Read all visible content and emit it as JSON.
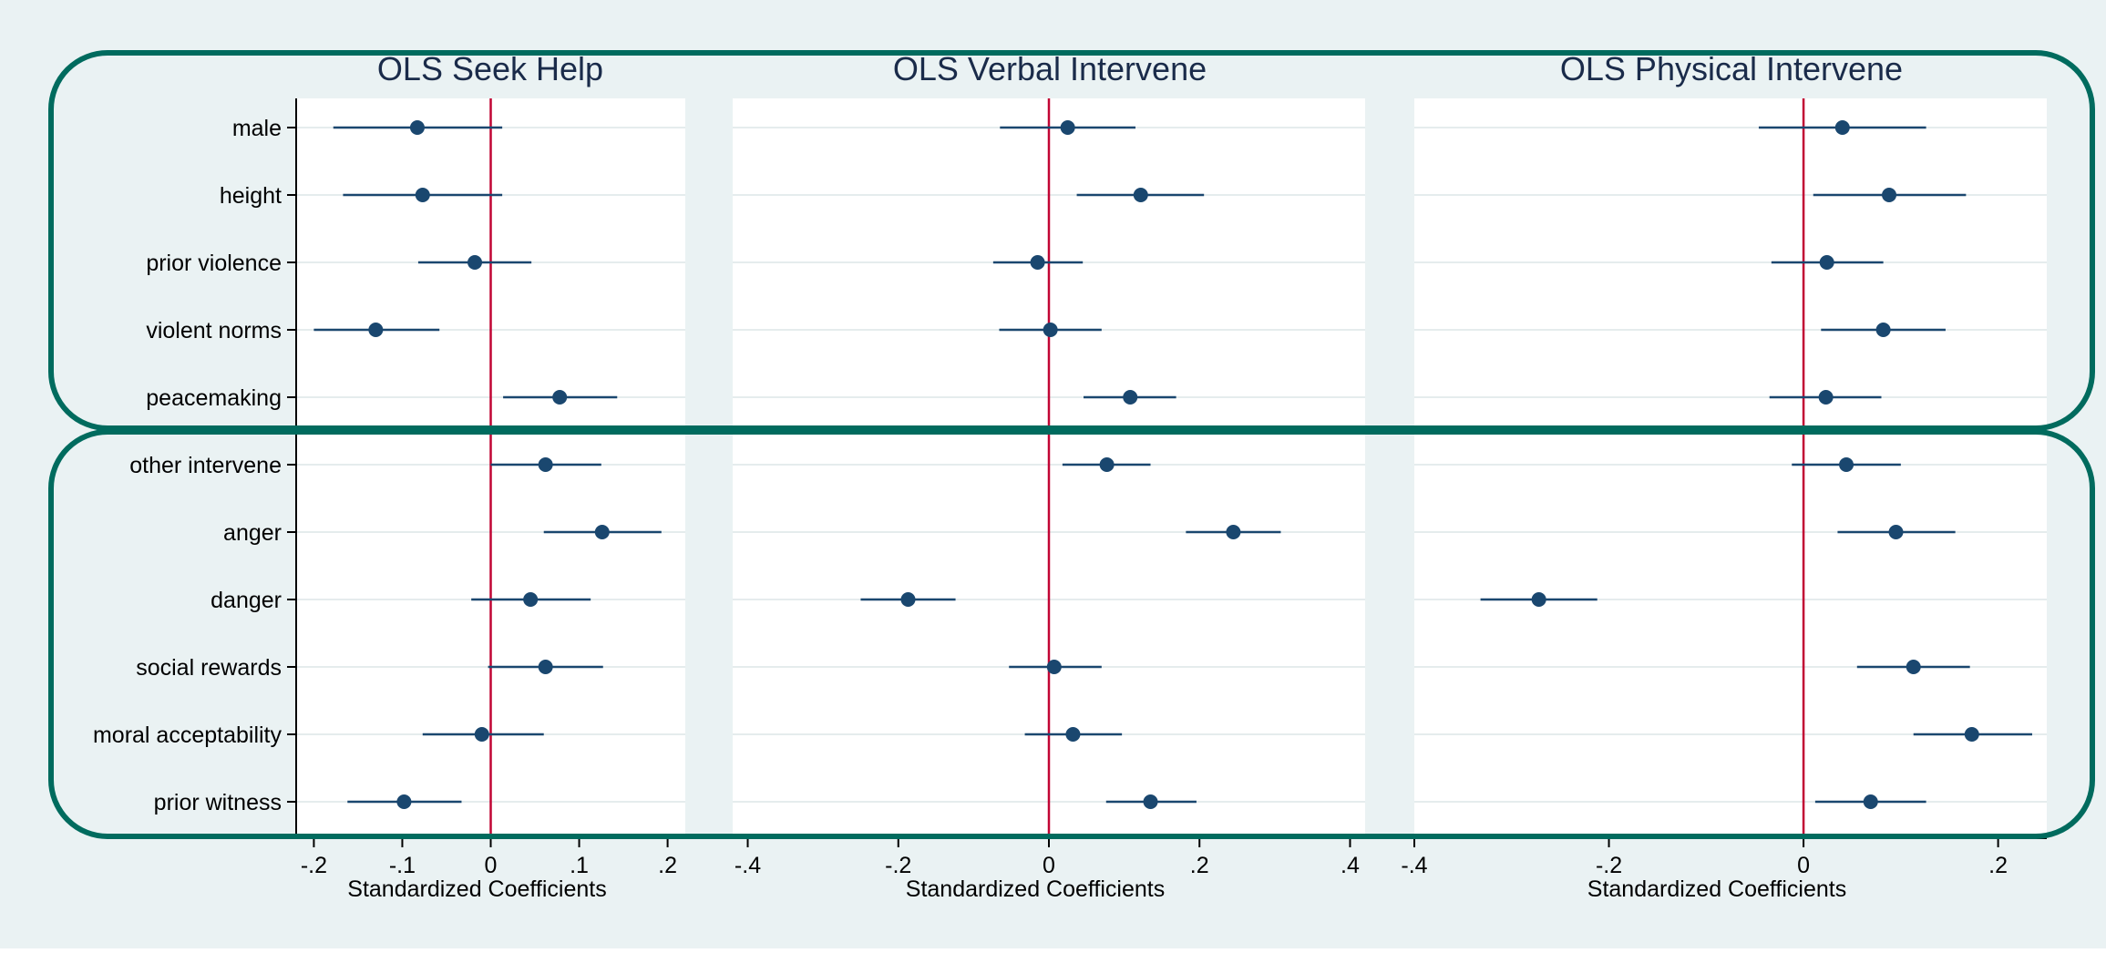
{
  "chart_data": [
    {
      "type": "scatter",
      "title": "OLS Seek Help",
      "xlabel": "Standardized Coefficients",
      "xlim": [
        -0.22,
        0.22
      ],
      "xticks": [
        -0.2,
        -0.1,
        0,
        0.1,
        0.2
      ],
      "xtick_labels": [
        "-.2",
        "-.1",
        "0",
        ".1",
        ".2"
      ],
      "reference_line": 0,
      "grid": true,
      "categories": [
        "male",
        "height",
        "prior violence",
        "violent norms",
        "peacemaking",
        "other intervene",
        "anger",
        "danger",
        "social rewards",
        "moral acceptability",
        "prior witness"
      ],
      "values": [
        -0.083,
        -0.077,
        -0.018,
        -0.13,
        0.078,
        0.062,
        0.126,
        0.045,
        0.062,
        -0.01,
        -0.098
      ],
      "ci_low": [
        -0.178,
        -0.167,
        -0.082,
        -0.2,
        0.014,
        0.0,
        0.06,
        -0.022,
        -0.003,
        -0.077,
        -0.162
      ],
      "ci_high": [
        0.013,
        0.013,
        0.046,
        -0.058,
        0.143,
        0.125,
        0.193,
        0.113,
        0.127,
        0.06,
        -0.033
      ]
    },
    {
      "type": "scatter",
      "title": "OLS Verbal Intervene",
      "xlabel": "Standardized Coefficients",
      "xlim": [
        -0.42,
        0.42
      ],
      "xticks": [
        -0.4,
        -0.2,
        0,
        0.2,
        0.4
      ],
      "xtick_labels": [
        "-.4",
        "-.2",
        "0",
        ".2",
        ".4"
      ],
      "reference_line": 0,
      "grid": true,
      "categories": [
        "male",
        "height",
        "prior violence",
        "violent norms",
        "peacemaking",
        "other intervene",
        "anger",
        "danger",
        "social rewards",
        "moral acceptability",
        "prior witness"
      ],
      "values": [
        0.025,
        0.122,
        -0.015,
        0.002,
        0.108,
        0.077,
        0.245,
        -0.187,
        0.007,
        0.032,
        0.135
      ],
      "ci_low": [
        -0.065,
        0.037,
        -0.074,
        -0.066,
        0.046,
        0.018,
        0.182,
        -0.25,
        -0.053,
        -0.032,
        0.076
      ],
      "ci_high": [
        0.115,
        0.206,
        0.045,
        0.07,
        0.169,
        0.135,
        0.308,
        -0.124,
        0.07,
        0.097,
        0.196
      ]
    },
    {
      "type": "scatter",
      "title": "OLS Physical Intervene",
      "xlabel": "Standardized Coefficients",
      "xlim": [
        -0.4,
        0.25
      ],
      "xticks": [
        -0.4,
        -0.2,
        0,
        0.2
      ],
      "xtick_labels": [
        "-.4",
        "-.2",
        "0",
        ".2"
      ],
      "reference_line": 0,
      "grid": true,
      "categories": [
        "male",
        "height",
        "prior violence",
        "violent norms",
        "peacemaking",
        "other intervene",
        "anger",
        "danger",
        "social rewards",
        "moral acceptability",
        "prior witness"
      ],
      "values": [
        0.04,
        0.088,
        0.024,
        0.082,
        0.023,
        0.044,
        0.095,
        -0.272,
        0.113,
        0.173,
        0.069
      ],
      "ci_low": [
        -0.046,
        0.01,
        -0.033,
        0.018,
        -0.035,
        -0.012,
        0.035,
        -0.332,
        0.055,
        0.113,
        0.012
      ],
      "ci_high": [
        0.126,
        0.167,
        0.082,
        0.146,
        0.08,
        0.1,
        0.156,
        -0.212,
        0.171,
        0.235,
        0.126
      ]
    }
  ],
  "colors": {
    "background": "#eaf2f3",
    "plot_bg": "#ffffff",
    "marker": "#1a476f",
    "ref_line": "#c10534",
    "highlight_box": "#006b5e",
    "grid": "#e5eced",
    "text": "#000000",
    "title": "#1a2b4a"
  }
}
